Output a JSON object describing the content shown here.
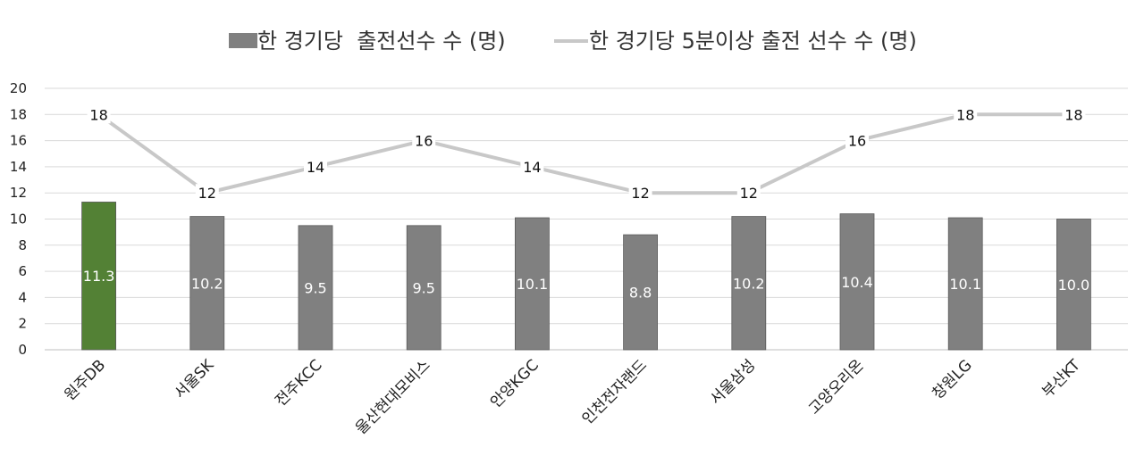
{
  "chart_data": {
    "type": "bar",
    "categories": [
      "원주DB",
      "서울SK",
      "전주KCC",
      "울산현대모비스",
      "안양KGC",
      "인천전자랜드",
      "서울삼성",
      "고양오리온",
      "창원LG",
      "부산KT"
    ],
    "series": [
      {
        "name": "한 경기당  출전선수 수 (명)",
        "type": "bar",
        "values": [
          11.3,
          10.2,
          9.5,
          9.5,
          10.1,
          8.8,
          10.2,
          10.4,
          10.1,
          10.0
        ],
        "labels": [
          "11.3",
          "10.2",
          "9.5",
          "9.5",
          "10.1",
          "8.8",
          "10.2",
          "10.4",
          "10.1",
          "10.0"
        ],
        "color": "#808080",
        "highlight_color": "#538135",
        "highlight_index": 0
      },
      {
        "name": "한 경기당 5분이상 출전 선수 수 (명)",
        "type": "line",
        "values": [
          18,
          12,
          14,
          16,
          14,
          12,
          12,
          16,
          18,
          18
        ],
        "labels": [
          "18",
          "12",
          "14",
          "16",
          "14",
          "12",
          "12",
          "16",
          "18",
          "18"
        ],
        "color": "#c8c8c8"
      }
    ],
    "y_ticks": [
      "0",
      "2",
      "4",
      "6",
      "8",
      "10",
      "12",
      "14",
      "16",
      "18",
      "20"
    ],
    "ylim": [
      0,
      20
    ],
    "grid": true,
    "legend_position": "top"
  }
}
